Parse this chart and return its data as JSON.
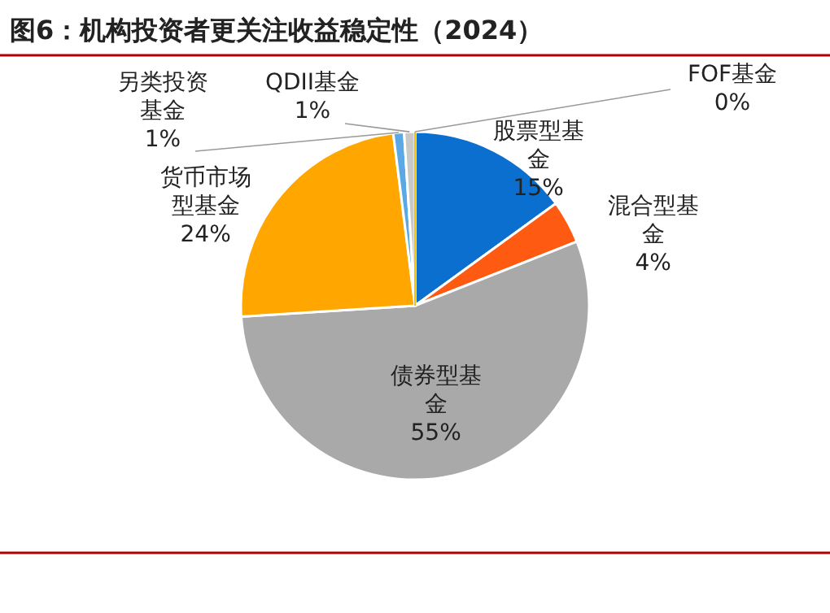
{
  "chart_data": {
    "type": "pie",
    "title": "图6：机构投资者更关注收益稳定性（2024）",
    "categories": [
      "股票型基金",
      "混合型基金",
      "债券型基金",
      "货币市场型基金",
      "另类投资基金",
      "QDII基金",
      "FOF基金"
    ],
    "values": [
      15,
      4,
      55,
      24,
      1,
      1,
      0
    ],
    "colors": [
      "#0b6fcf",
      "#ff5a12",
      "#a9a9a9",
      "#ffa600",
      "#5aa9e6",
      "#c9c9c9",
      "#f2c200"
    ],
    "data_labels": true,
    "value_labels": [
      "15%",
      "4%",
      "55%",
      "24%",
      "1%",
      "1%",
      "0%"
    ]
  }
}
